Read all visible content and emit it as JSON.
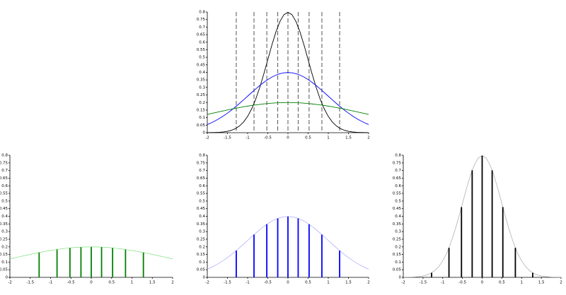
{
  "chart_data": [
    {
      "type": "line",
      "x": [
        -2,
        -1.9,
        -1.8,
        -1.7,
        -1.6,
        -1.5,
        -1.4,
        -1.3,
        -1.2,
        -1.1,
        -1,
        -0.9,
        -0.8,
        -0.7,
        -0.6,
        -0.5,
        -0.4,
        -0.3,
        -0.2,
        -0.1,
        0,
        0.1,
        0.2,
        0.3,
        0.4,
        0.5,
        0.6,
        0.7,
        0.8,
        0.9,
        1,
        1.1,
        1.2,
        1.3,
        1.4,
        1.5,
        1.6,
        1.7,
        1.8,
        1.9,
        2
      ],
      "series": [
        {
          "color": "#000000",
          "values": [
            0.0003,
            0.0006,
            0.0012,
            0.0024,
            0.0048,
            0.0088,
            0.0158,
            0.0272,
            0.0448,
            0.071,
            0.108,
            0.1579,
            0.2218,
            0.2995,
            0.3884,
            0.4839,
            0.5794,
            0.6664,
            0.7365,
            0.7821,
            0.7979,
            0.7821,
            0.7365,
            0.6664,
            0.5794,
            0.4839,
            0.3884,
            0.2995,
            0.2218,
            0.1579,
            0.108,
            0.071,
            0.0448,
            0.0272,
            0.0158,
            0.0088,
            0.0048,
            0.0024,
            0.0012,
            0.0006,
            0.0003
          ]
        },
        {
          "color": "#0000ff",
          "values": [
            0.054,
            0.0656,
            0.079,
            0.094,
            0.1109,
            0.1295,
            0.1497,
            0.1714,
            0.1942,
            0.2179,
            0.242,
            0.2661,
            0.2897,
            0.3123,
            0.3332,
            0.3521,
            0.3683,
            0.3814,
            0.391,
            0.397,
            0.3989,
            0.397,
            0.391,
            0.3814,
            0.3683,
            0.3521,
            0.3332,
            0.3123,
            0.2897,
            0.2661,
            0.242,
            0.2179,
            0.1942,
            0.1714,
            0.1497,
            0.1295,
            0.1109,
            0.094,
            0.079,
            0.0656,
            0.054
          ]
        },
        {
          "color": "#008000",
          "values": [
            0.121,
            0.127,
            0.133,
            0.139,
            0.1449,
            0.1506,
            0.1562,
            0.1615,
            0.1666,
            0.1714,
            0.176,
            0.1803,
            0.1841,
            0.1876,
            0.1907,
            0.1933,
            0.1955,
            0.1972,
            0.1985,
            0.1992,
            0.1995,
            0.1992,
            0.1985,
            0.1972,
            0.1955,
            0.1933,
            0.1907,
            0.1876,
            0.1841,
            0.1803,
            0.176,
            0.1714,
            0.1666,
            0.1615,
            0.1562,
            0.1506,
            0.1449,
            0.139,
            0.133,
            0.127,
            0.121
          ]
        }
      ],
      "vlines": [
        -1.2816,
        -0.8416,
        -0.5244,
        -0.2533,
        0,
        0.2533,
        0.5244,
        0.8416,
        1.2816
      ],
      "xlim": [
        -2,
        2
      ],
      "ylim": [
        0,
        0.8
      ],
      "xticks": [
        -2,
        -1.5,
        -1,
        -0.5,
        0,
        0.5,
        1,
        1.5,
        2
      ],
      "yticks": [
        0,
        0.05,
        0.1,
        0.15,
        0.2,
        0.25,
        0.3,
        0.35,
        0.4,
        0.45,
        0.5,
        0.55,
        0.6,
        0.65,
        0.7,
        0.75,
        0.8
      ]
    },
    {
      "type": "stem",
      "curve_x": [
        -2,
        -1.9,
        -1.8,
        -1.7,
        -1.6,
        -1.5,
        -1.4,
        -1.3,
        -1.2,
        -1.1,
        -1,
        -0.9,
        -0.8,
        -0.7,
        -0.6,
        -0.5,
        -0.4,
        -0.3,
        -0.2,
        -0.1,
        0,
        0.1,
        0.2,
        0.3,
        0.4,
        0.5,
        0.6,
        0.7,
        0.8,
        0.9,
        1,
        1.1,
        1.2,
        1.3,
        1.4,
        1.5,
        1.6,
        1.7,
        1.8,
        1.9,
        2
      ],
      "curve_values": [
        0.121,
        0.127,
        0.133,
        0.139,
        0.1449,
        0.1506,
        0.1562,
        0.1615,
        0.1666,
        0.1714,
        0.176,
        0.1803,
        0.1841,
        0.1876,
        0.1907,
        0.1933,
        0.1955,
        0.1972,
        0.1985,
        0.1992,
        0.1995,
        0.1992,
        0.1985,
        0.1972,
        0.1955,
        0.1933,
        0.1907,
        0.1876,
        0.1841,
        0.1803,
        0.176,
        0.1714,
        0.1666,
        0.1615,
        0.1562,
        0.1506,
        0.1449,
        0.139,
        0.133,
        0.127,
        0.121
      ],
      "curve_color": "#66dd66",
      "stem_x": [
        -1.2816,
        -0.8416,
        -0.5244,
        -0.2533,
        0,
        0.2533,
        0.5244,
        0.8416,
        1.2816
      ],
      "values": [
        0.1626,
        0.1825,
        0.1928,
        0.1979,
        0.1995,
        0.1979,
        0.1928,
        0.1825,
        0.1626
      ],
      "color": "#008000",
      "xlim": [
        -2,
        2
      ],
      "ylim": [
        0,
        0.8
      ],
      "xticks": [
        -2,
        -1.5,
        -1,
        -0.5,
        0,
        0.5,
        1,
        1.5,
        2
      ],
      "yticks": [
        0,
        0.05,
        0.1,
        0.15,
        0.2,
        0.25,
        0.3,
        0.35,
        0.4,
        0.45,
        0.5,
        0.55,
        0.6,
        0.65,
        0.7,
        0.75,
        0.8
      ]
    },
    {
      "type": "stem",
      "curve_x": [
        -2,
        -1.9,
        -1.8,
        -1.7,
        -1.6,
        -1.5,
        -1.4,
        -1.3,
        -1.2,
        -1.1,
        -1,
        -0.9,
        -0.8,
        -0.7,
        -0.6,
        -0.5,
        -0.4,
        -0.3,
        -0.2,
        -0.1,
        0,
        0.1,
        0.2,
        0.3,
        0.4,
        0.5,
        0.6,
        0.7,
        0.8,
        0.9,
        1,
        1.1,
        1.2,
        1.3,
        1.4,
        1.5,
        1.6,
        1.7,
        1.8,
        1.9,
        2
      ],
      "curve_values": [
        0.054,
        0.0656,
        0.079,
        0.094,
        0.1109,
        0.1295,
        0.1497,
        0.1714,
        0.1942,
        0.2179,
        0.242,
        0.2661,
        0.2897,
        0.3123,
        0.3332,
        0.3521,
        0.3683,
        0.3814,
        0.391,
        0.397,
        0.3989,
        0.397,
        0.391,
        0.3814,
        0.3683,
        0.3521,
        0.3332,
        0.3123,
        0.2897,
        0.2661,
        0.242,
        0.2179,
        0.1942,
        0.1714,
        0.1497,
        0.1295,
        0.1109,
        0.094,
        0.079,
        0.0656,
        0.054
      ],
      "curve_color": "#9999ff",
      "stem_x": [
        -1.2816,
        -0.8416,
        -0.5244,
        -0.2533,
        0,
        0.2533,
        0.5244,
        0.8416,
        1.2816
      ],
      "values": [
        0.1755,
        0.28,
        0.3477,
        0.3863,
        0.3989,
        0.3863,
        0.3477,
        0.28,
        0.1755
      ],
      "color": "#0000ff",
      "xlim": [
        -2,
        2
      ],
      "ylim": [
        0,
        0.8
      ],
      "xticks": [
        -2,
        -1.5,
        -1,
        -0.5,
        0,
        0.5,
        1,
        1.5,
        2
      ],
      "yticks": [
        0,
        0.05,
        0.1,
        0.15,
        0.2,
        0.25,
        0.3,
        0.35,
        0.4,
        0.45,
        0.5,
        0.55,
        0.6,
        0.65,
        0.7,
        0.75,
        0.8
      ]
    },
    {
      "type": "stem",
      "curve_x": [
        -2,
        -1.9,
        -1.8,
        -1.7,
        -1.6,
        -1.5,
        -1.4,
        -1.3,
        -1.2,
        -1.1,
        -1,
        -0.9,
        -0.8,
        -0.7,
        -0.6,
        -0.5,
        -0.4,
        -0.3,
        -0.2,
        -0.1,
        0,
        0.1,
        0.2,
        0.3,
        0.4,
        0.5,
        0.6,
        0.7,
        0.8,
        0.9,
        1,
        1.1,
        1.2,
        1.3,
        1.4,
        1.5,
        1.6,
        1.7,
        1.8,
        1.9,
        2
      ],
      "curve_values": [
        0.0003,
        0.0006,
        0.0012,
        0.0024,
        0.0048,
        0.0088,
        0.0158,
        0.0272,
        0.0448,
        0.071,
        0.108,
        0.1579,
        0.2218,
        0.2995,
        0.3884,
        0.4839,
        0.5794,
        0.6664,
        0.7365,
        0.7821,
        0.7979,
        0.7821,
        0.7365,
        0.6664,
        0.5794,
        0.4839,
        0.3884,
        0.2995,
        0.2218,
        0.1579,
        0.108,
        0.071,
        0.0448,
        0.0272,
        0.0158,
        0.0088,
        0.0048,
        0.0024,
        0.0012,
        0.0006,
        0.0003
      ],
      "curve_color": "#999999",
      "stem_x": [
        -1.2816,
        -0.8416,
        -0.5244,
        -0.2533,
        0,
        0.2533,
        0.5244,
        0.8416,
        1.2816
      ],
      "values": [
        0.03,
        0.1936,
        0.4608,
        0.7018,
        0.7979,
        0.7018,
        0.4608,
        0.1936,
        0.03
      ],
      "color": "#000000",
      "xlim": [
        -2,
        2
      ],
      "ylim": [
        0,
        0.8
      ],
      "xticks": [
        -2,
        -1.5,
        -1,
        -0.5,
        0,
        0.5,
        1,
        1.5,
        2
      ],
      "yticks": [
        0,
        0.05,
        0.1,
        0.15,
        0.2,
        0.25,
        0.3,
        0.35,
        0.4,
        0.45,
        0.5,
        0.55,
        0.6,
        0.65,
        0.7,
        0.75,
        0.8
      ]
    }
  ]
}
